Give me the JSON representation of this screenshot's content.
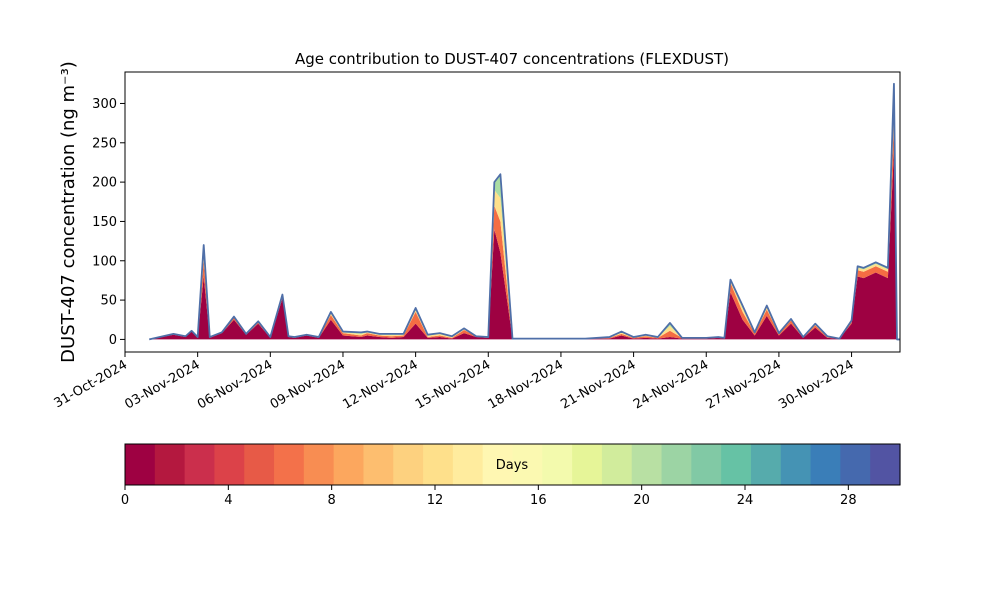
{
  "chart_data": [
    {
      "type": "area",
      "title": "Age contribution to DUST-407 concentrations (FLEXDUST)",
      "ylabel": "DUST-407 concentration (ng m⁻³)",
      "xlabel": "",
      "xlim": [
        "2024-10-31",
        "2024-12-02"
      ],
      "ylim": [
        -16,
        340
      ],
      "y_ticks": [
        0,
        50,
        100,
        150,
        200,
        250,
        300
      ],
      "x_ticks": [
        "31-Oct-2024",
        "03-Nov-2024",
        "06-Nov-2024",
        "09-Nov-2024",
        "12-Nov-2024",
        "15-Nov-2024",
        "18-Nov-2024",
        "21-Nov-2024",
        "24-Nov-2024",
        "27-Nov-2024",
        "30-Nov-2024"
      ],
      "grid": false,
      "x": [
        "2024-11-01",
        "2024-11-02",
        "2024-11-02 12:00",
        "2024-11-02 18:00",
        "2024-11-03",
        "2024-11-03 06:00",
        "2024-11-03 12:00",
        "2024-11-04",
        "2024-11-04 12:00",
        "2024-11-05",
        "2024-11-05 12:00",
        "2024-11-06",
        "2024-11-06 12:00",
        "2024-11-06 18:00",
        "2024-11-07",
        "2024-11-07 12:00",
        "2024-11-08",
        "2024-11-08 12:00",
        "2024-11-09",
        "2024-11-09 18:00",
        "2024-11-10",
        "2024-11-10 12:00",
        "2024-11-11",
        "2024-11-11 12:00",
        "2024-11-12",
        "2024-11-12 12:00",
        "2024-11-13",
        "2024-11-13 12:00",
        "2024-11-14",
        "2024-11-14 12:00",
        "2024-11-15",
        "2024-11-15 06:00",
        "2024-11-15 12:00",
        "2024-11-16",
        "2024-11-17",
        "2024-11-18",
        "2024-11-19",
        "2024-11-20",
        "2024-11-20 12:00",
        "2024-11-21",
        "2024-11-21 12:00",
        "2024-11-22",
        "2024-11-22 12:00",
        "2024-11-23",
        "2024-11-24",
        "2024-11-24 12:00",
        "2024-11-24 18:00",
        "2024-11-25",
        "2024-11-25 12:00",
        "2024-11-26",
        "2024-11-26 12:00",
        "2024-11-27",
        "2024-11-27 12:00",
        "2024-11-28",
        "2024-11-28 12:00",
        "2024-11-29",
        "2024-11-29 12:00",
        "2024-11-30",
        "2024-11-30 06:00",
        "2024-11-30 12:00",
        "2024-12-01",
        "2024-12-01 12:00",
        "2024-12-01 18:00",
        "2024-12-01 21:00",
        "2024-12-02"
      ],
      "series": [
        {
          "values": [
            0,
            6,
            3,
            10,
            2,
            80,
            2,
            8,
            25,
            6,
            20,
            2,
            52,
            3,
            2,
            5,
            2,
            25,
            5,
            3,
            5,
            3,
            2,
            3,
            20,
            2,
            3,
            1,
            8,
            3,
            2,
            140,
            110,
            1,
            1,
            1,
            1,
            1,
            5,
            1,
            2,
            1,
            3,
            1,
            1,
            2,
            1,
            60,
            25,
            5,
            30,
            5,
            20,
            2,
            15,
            2,
            1,
            20,
            80,
            78,
            85,
            78,
            240,
            0,
            0
          ]
        },
        {
          "values": [
            0,
            1,
            1,
            1,
            1,
            20,
            1,
            1,
            3,
            1,
            2,
            1,
            3,
            1,
            1,
            1,
            1,
            6,
            3,
            2,
            3,
            2,
            2,
            2,
            15,
            1,
            2,
            1,
            4,
            1,
            1,
            30,
            40,
            0,
            0,
            0,
            0,
            1,
            2,
            1,
            2,
            1,
            8,
            1,
            1,
            1,
            1,
            12,
            10,
            3,
            8,
            2,
            4,
            1,
            3,
            1,
            0,
            3,
            8,
            8,
            8,
            8,
            40,
            0,
            0
          ]
        },
        {
          "values": [
            0,
            0,
            0,
            0,
            0,
            10,
            0,
            0,
            1,
            0,
            1,
            0,
            1,
            0,
            0,
            0,
            0,
            2,
            1,
            2,
            1,
            1,
            2,
            1,
            3,
            2,
            2,
            1,
            1,
            0,
            0,
            20,
            30,
            0,
            0,
            0,
            0,
            1,
            2,
            1,
            1,
            1,
            6,
            0,
            0,
            0,
            0,
            3,
            5,
            1,
            3,
            1,
            1,
            0,
            1,
            1,
            0,
            1,
            3,
            3,
            3,
            3,
            30,
            0,
            0
          ]
        },
        {
          "values": [
            0,
            0,
            0,
            0,
            0,
            10,
            0,
            0,
            0,
            0,
            0,
            0,
            1,
            0,
            0,
            0,
            0,
            2,
            1,
            2,
            1,
            1,
            1,
            1,
            2,
            1,
            1,
            1,
            1,
            0,
            0,
            10,
            30,
            0,
            0,
            0,
            0,
            0,
            1,
            0,
            1,
            0,
            4,
            0,
            0,
            0,
            0,
            1,
            3,
            0,
            2,
            0,
            1,
            0,
            1,
            0,
            0,
            0,
            2,
            2,
            2,
            2,
            15,
            0,
            0
          ]
        }
      ],
      "series_colors": [
        "#9e0142",
        "#f46d43",
        "#fee08b",
        "#abdda4"
      ],
      "outline_color": "#4f6fa8"
    },
    {
      "type": "heatmap",
      "label": "Days",
      "range": [
        0,
        30
      ],
      "ticks": [
        0,
        4,
        8,
        12,
        16,
        20,
        24,
        28
      ],
      "colors": [
        "#9e0142",
        "#b4183f",
        "#cb2f4c",
        "#dc4249",
        "#e75a47",
        "#f3714a",
        "#f88d52",
        "#fca75e",
        "#fdbe6f",
        "#fdd17f",
        "#fee08b",
        "#ffec9e",
        "#fff7b2",
        "#fbf9b1",
        "#f3faad",
        "#e6f598",
        "#d1ec9c",
        "#b8e0a3",
        "#9cd4a4",
        "#81c9a5",
        "#66c2a5",
        "#56abac",
        "#4593b4",
        "#3a7eb8",
        "#4569ae",
        "#5254a3"
      ]
    }
  ]
}
